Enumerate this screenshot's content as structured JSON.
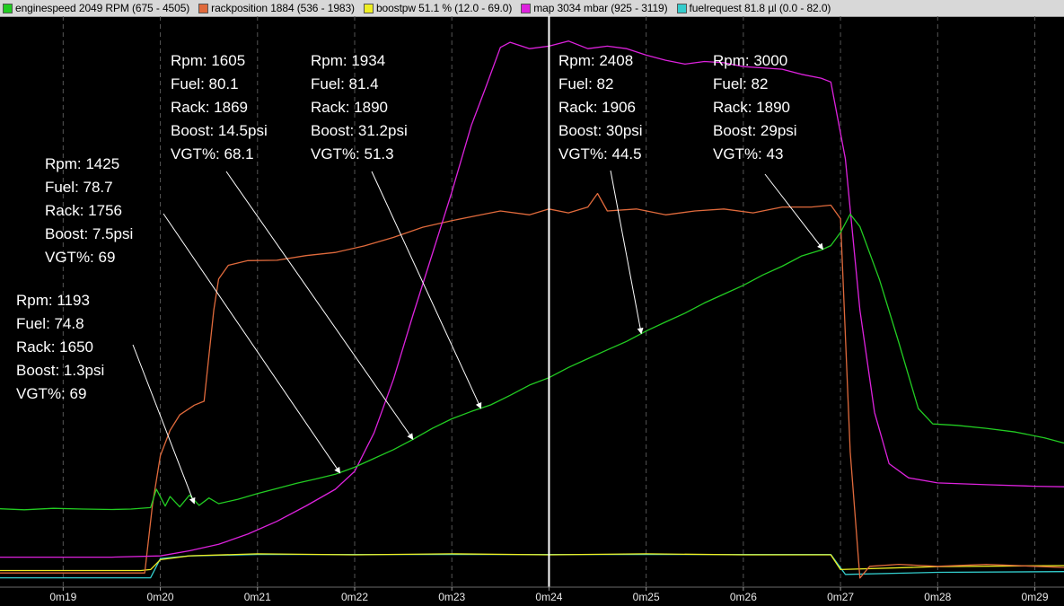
{
  "legend": [
    {
      "name": "enginespeed 2049 RPM (675 - 4505)",
      "color": "#22cc22"
    },
    {
      "name": "rackposition 1884  (536 - 1983)",
      "color": "#e06a3c"
    },
    {
      "name": "boostpw 51.1 % (12.0 - 69.0)",
      "color": "#eeee22"
    },
    {
      "name": "map 3034 mbar (925 - 3119)",
      "color": "#dd22dd"
    },
    {
      "name": "fuelrequest 81.8 µl (0.0 - 82.0)",
      "color": "#33cccc"
    }
  ],
  "chart_data": {
    "type": "line",
    "x_ticks": [
      "0m19",
      "0m20",
      "0m21",
      "0m22",
      "0m23",
      "0m24",
      "0m25",
      "0m26",
      "0m27",
      "0m28",
      "0m29"
    ],
    "x_tick_seconds": [
      19,
      20,
      21,
      22,
      23,
      24,
      25,
      26,
      27,
      28,
      29
    ],
    "xlim": [
      18.35,
      29.3
    ],
    "cursor_seconds": 24,
    "grid": "vertical dashed",
    "series": [
      {
        "name": "enginespeed",
        "unit": "RPM",
        "color": "#22cc22",
        "range": [
          675,
          4505
        ],
        "points": [
          [
            18.35,
            1197
          ],
          [
            18.6,
            1190
          ],
          [
            18.9,
            1200
          ],
          [
            19.2,
            1195
          ],
          [
            19.5,
            1192
          ],
          [
            19.7,
            1195
          ],
          [
            19.9,
            1205
          ],
          [
            19.96,
            1330
          ],
          [
            20.05,
            1215
          ],
          [
            20.1,
            1280
          ],
          [
            20.2,
            1210
          ],
          [
            20.3,
            1290
          ],
          [
            20.4,
            1220
          ],
          [
            20.5,
            1270
          ],
          [
            20.6,
            1232
          ],
          [
            20.8,
            1262
          ],
          [
            21.0,
            1300
          ],
          [
            21.2,
            1335
          ],
          [
            21.4,
            1370
          ],
          [
            21.6,
            1400
          ],
          [
            21.8,
            1432
          ],
          [
            22.0,
            1480
          ],
          [
            22.2,
            1540
          ],
          [
            22.4,
            1600
          ],
          [
            22.6,
            1670
          ],
          [
            22.8,
            1745
          ],
          [
            23.0,
            1810
          ],
          [
            23.2,
            1860
          ],
          [
            23.4,
            1905
          ],
          [
            23.6,
            1970
          ],
          [
            23.8,
            2040
          ],
          [
            24.0,
            2090
          ],
          [
            24.2,
            2160
          ],
          [
            24.4,
            2220
          ],
          [
            24.6,
            2280
          ],
          [
            24.8,
            2338
          ],
          [
            25.0,
            2408
          ],
          [
            25.2,
            2470
          ],
          [
            25.4,
            2530
          ],
          [
            25.6,
            2600
          ],
          [
            25.8,
            2660
          ],
          [
            26.0,
            2720
          ],
          [
            26.2,
            2790
          ],
          [
            26.4,
            2850
          ],
          [
            26.6,
            2920
          ],
          [
            26.8,
            2960
          ],
          [
            26.9,
            2990
          ],
          [
            27.0,
            3080
          ],
          [
            27.1,
            3205
          ],
          [
            27.2,
            3120
          ],
          [
            27.4,
            2760
          ],
          [
            27.6,
            2330
          ],
          [
            27.8,
            1880
          ],
          [
            27.95,
            1775
          ],
          [
            28.2,
            1765
          ],
          [
            28.5,
            1745
          ],
          [
            28.8,
            1720
          ],
          [
            29.1,
            1680
          ],
          [
            29.3,
            1645
          ]
        ]
      },
      {
        "name": "rackposition",
        "unit": "",
        "color": "#e06a3c",
        "range": [
          536,
          1983
        ],
        "points": [
          [
            18.35,
            568
          ],
          [
            19.0,
            568
          ],
          [
            19.5,
            568
          ],
          [
            19.84,
            568
          ],
          [
            19.92,
            745
          ],
          [
            20.0,
            870
          ],
          [
            20.1,
            935
          ],
          [
            20.2,
            975
          ],
          [
            20.35,
            1000
          ],
          [
            20.45,
            1010
          ],
          [
            20.55,
            1245
          ],
          [
            20.6,
            1325
          ],
          [
            20.7,
            1360
          ],
          [
            20.9,
            1372
          ],
          [
            21.2,
            1373
          ],
          [
            21.5,
            1385
          ],
          [
            21.8,
            1393
          ],
          [
            22.1,
            1410
          ],
          [
            22.4,
            1432
          ],
          [
            22.7,
            1458
          ],
          [
            23.0,
            1475
          ],
          [
            23.3,
            1490
          ],
          [
            23.5,
            1500
          ],
          [
            23.8,
            1490
          ],
          [
            24.0,
            1505
          ],
          [
            24.2,
            1495
          ],
          [
            24.4,
            1510
          ],
          [
            24.5,
            1545
          ],
          [
            24.6,
            1500
          ],
          [
            24.9,
            1505
          ],
          [
            25.2,
            1490
          ],
          [
            25.5,
            1500
          ],
          [
            25.8,
            1505
          ],
          [
            26.1,
            1495
          ],
          [
            26.4,
            1510
          ],
          [
            26.7,
            1510
          ],
          [
            26.9,
            1515
          ],
          [
            27.0,
            1480
          ],
          [
            27.1,
            880
          ],
          [
            27.2,
            555
          ],
          [
            27.3,
            585
          ],
          [
            27.6,
            590
          ],
          [
            28.0,
            585
          ],
          [
            28.5,
            590
          ],
          [
            29.0,
            585
          ],
          [
            29.3,
            582
          ]
        ]
      },
      {
        "name": "boostpw",
        "unit": "%",
        "color": "#eeee22",
        "range": [
          12.0,
          69.0
        ],
        "points": [
          [
            18.35,
            13.5
          ],
          [
            19.8,
            13.5
          ],
          [
            19.9,
            13.6
          ],
          [
            20.0,
            14.6
          ],
          [
            20.3,
            15.0
          ],
          [
            21.0,
            15.2
          ],
          [
            22.0,
            15.1
          ],
          [
            23.0,
            15.2
          ],
          [
            24.0,
            15.1
          ],
          [
            25.0,
            15.2
          ],
          [
            26.0,
            15.1
          ],
          [
            26.9,
            15.1
          ],
          [
            27.0,
            13.6
          ],
          [
            28.0,
            13.9
          ],
          [
            29.3,
            14.0
          ]
        ]
      },
      {
        "name": "map",
        "unit": "mbar",
        "color": "#dd22dd",
        "range": [
          925,
          3119
        ],
        "points": [
          [
            18.35,
            1035
          ],
          [
            19.5,
            1035
          ],
          [
            20.0,
            1040
          ],
          [
            20.3,
            1060
          ],
          [
            20.6,
            1085
          ],
          [
            20.9,
            1125
          ],
          [
            21.2,
            1175
          ],
          [
            21.5,
            1235
          ],
          [
            21.8,
            1300
          ],
          [
            22.0,
            1370
          ],
          [
            22.2,
            1520
          ],
          [
            22.4,
            1730
          ],
          [
            22.6,
            1980
          ],
          [
            22.8,
            2220
          ],
          [
            23.0,
            2460
          ],
          [
            23.2,
            2720
          ],
          [
            23.35,
            2870
          ],
          [
            23.5,
            3025
          ],
          [
            23.6,
            3045
          ],
          [
            23.8,
            3020
          ],
          [
            24.0,
            3030
          ],
          [
            24.2,
            3050
          ],
          [
            24.4,
            3020
          ],
          [
            24.6,
            3030
          ],
          [
            24.8,
            3020
          ],
          [
            25.0,
            2995
          ],
          [
            25.2,
            2975
          ],
          [
            25.4,
            2960
          ],
          [
            25.6,
            2970
          ],
          [
            25.8,
            2965
          ],
          [
            26.0,
            2950
          ],
          [
            26.2,
            2945
          ],
          [
            26.4,
            2940
          ],
          [
            26.6,
            2920
          ],
          [
            26.8,
            2905
          ],
          [
            26.9,
            2890
          ],
          [
            27.05,
            2590
          ],
          [
            27.2,
            2000
          ],
          [
            27.35,
            1600
          ],
          [
            27.5,
            1400
          ],
          [
            27.7,
            1345
          ],
          [
            28.0,
            1325
          ],
          [
            28.5,
            1318
          ],
          [
            29.0,
            1312
          ],
          [
            29.3,
            1310
          ]
        ]
      },
      {
        "name": "fuelrequest",
        "unit": "µl",
        "color": "#33cccc",
        "range": [
          0.0,
          82.0
        ],
        "points": [
          [
            18.35,
            1.1
          ],
          [
            19.8,
            1.1
          ],
          [
            19.9,
            1.1
          ],
          [
            20.0,
            3.9
          ],
          [
            20.3,
            4.3
          ],
          [
            21.0,
            4.5
          ],
          [
            22.0,
            4.5
          ],
          [
            23.0,
            4.5
          ],
          [
            24.0,
            4.5
          ],
          [
            25.0,
            4.5
          ],
          [
            26.0,
            4.5
          ],
          [
            26.9,
            4.5
          ],
          [
            27.05,
            1.6
          ],
          [
            28.0,
            1.9
          ],
          [
            29.3,
            2.0
          ]
        ]
      }
    ],
    "annotations": [
      {
        "lines": [
          "Rpm: 1193",
          "Fuel: 74.8",
          "Rack: 1650",
          "Boost: 1.3psi",
          "VGT%: 69"
        ],
        "target_seconds": 20.35,
        "target_rpm": 1232
      },
      {
        "lines": [
          "Rpm: 1425",
          "Fuel: 78.7",
          "Rack: 1756",
          "Boost: 7.5psi",
          "VGT%: 69"
        ],
        "target_seconds": 21.85,
        "target_rpm": 1440
      },
      {
        "lines": [
          "Rpm: 1605",
          "Fuel: 80.1",
          "Rack: 1869",
          "Boost: 14.5psi",
          "VGT%: 68.1"
        ],
        "target_seconds": 22.6,
        "target_rpm": 1670
      },
      {
        "lines": [
          "Rpm: 1934",
          "Fuel: 81.4",
          "Rack: 1890",
          "Boost: 31.2psi",
          "VGT%: 51.3"
        ],
        "target_seconds": 23.3,
        "target_rpm": 1880
      },
      {
        "lines": [
          "Rpm: 2408",
          "Fuel: 82",
          "Rack: 1906",
          "Boost: 30psi",
          "VGT%: 44.5"
        ],
        "target_seconds": 24.95,
        "target_rpm": 2390
      },
      {
        "lines": [
          "Rpm: 3000",
          "Fuel: 82",
          "Rack: 1890",
          "Boost: 29psi",
          "VGT%: 43"
        ],
        "target_seconds": 26.82,
        "target_rpm": 2965
      }
    ]
  }
}
